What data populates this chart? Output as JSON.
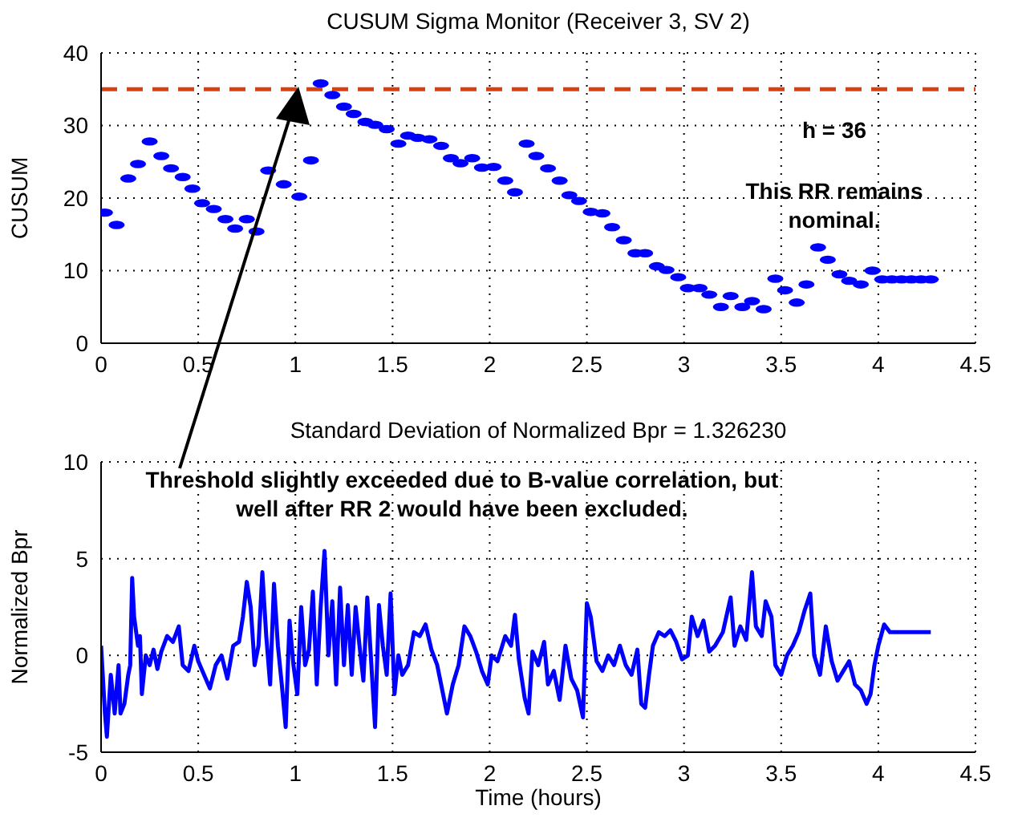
{
  "chart_data": [
    {
      "type": "scatter",
      "title": "CUSUM Sigma Monitor  (Receiver 3, SV 2)",
      "ylabel": "CUSUM",
      "marker": "circle",
      "grid": true,
      "x": [
        0.02,
        0.08,
        0.14,
        0.19,
        0.25,
        0.31,
        0.36,
        0.42,
        0.47,
        0.52,
        0.58,
        0.64,
        0.69,
        0.75,
        0.8,
        0.86,
        0.94,
        1.02,
        1.08,
        1.13,
        1.19,
        1.25,
        1.3,
        1.36,
        1.41,
        1.47,
        1.53,
        1.58,
        1.63,
        1.69,
        1.75,
        1.8,
        1.85,
        1.91,
        1.96,
        2.02,
        2.08,
        2.13,
        2.19,
        2.24,
        2.3,
        2.36,
        2.41,
        2.46,
        2.52,
        2.58,
        2.63,
        2.69,
        2.75,
        2.8,
        2.86,
        2.91,
        2.97,
        3.02,
        3.08,
        3.13,
        3.19,
        3.24,
        3.3,
        3.35,
        3.41,
        3.47,
        3.52,
        3.58,
        3.63,
        3.69,
        3.74,
        3.8,
        3.85,
        3.91,
        3.97,
        4.02,
        4.07,
        4.12,
        4.17,
        4.22,
        4.27
      ],
      "series": [
        {
          "color": "#0000ff",
          "values": [
            18.0,
            16.3,
            22.7,
            24.7,
            27.8,
            25.8,
            24.1,
            22.9,
            21.3,
            19.3,
            18.5,
            17.1,
            15.8,
            17.1,
            15.4,
            23.8,
            21.9,
            20.2,
            25.2,
            35.8,
            34.2,
            32.6,
            31.6,
            30.5,
            30.1,
            29.5,
            27.5,
            28.6,
            28.3,
            28.1,
            27.2,
            25.5,
            24.8,
            25.5,
            24.2,
            24.3,
            22.4,
            20.8,
            27.5,
            25.8,
            24.1,
            22.4,
            20.4,
            19.6,
            18.1,
            17.9,
            16.0,
            14.2,
            12.4,
            12.4,
            10.6,
            10.1,
            9.1,
            7.6,
            7.6,
            6.7,
            5.0,
            6.5,
            5.0,
            5.8,
            4.7,
            8.9,
            7.3,
            5.6,
            8.1,
            13.2,
            11.5,
            9.5,
            8.6,
            8.1,
            10.0,
            8.8,
            8.8,
            8.8,
            8.8,
            8.8,
            8.8
          ]
        }
      ],
      "xlim": [
        0,
        4.5
      ],
      "xticks": [
        0,
        0.5,
        1,
        1.5,
        2,
        2.5,
        3,
        3.5,
        4,
        4.5
      ],
      "ylim": [
        0,
        40
      ],
      "yticks": [
        0,
        10,
        20,
        30,
        40
      ],
      "ref_lines": [
        {
          "axis": "y",
          "value": 35,
          "color": "#d84010",
          "line_style": "dashed"
        }
      ],
      "annotations": [
        "h = 36",
        "This RR remains nominal."
      ]
    },
    {
      "type": "line",
      "title": "Standard Deviation of Normalized Bpr = 1.326230",
      "xlabel": "Time (hours)",
      "ylabel": "Normalized Bpr",
      "marker": "none",
      "line_style": "solid",
      "grid": true,
      "x": [
        0.0,
        0.02,
        0.03,
        0.05,
        0.07,
        0.09,
        0.1,
        0.12,
        0.14,
        0.15,
        0.16,
        0.17,
        0.19,
        0.2,
        0.21,
        0.23,
        0.25,
        0.27,
        0.29,
        0.31,
        0.34,
        0.37,
        0.4,
        0.42,
        0.45,
        0.48,
        0.5,
        0.53,
        0.56,
        0.59,
        0.62,
        0.65,
        0.68,
        0.71,
        0.73,
        0.75,
        0.77,
        0.79,
        0.81,
        0.83,
        0.85,
        0.87,
        0.89,
        0.91,
        0.93,
        0.95,
        0.97,
        0.99,
        1.01,
        1.03,
        1.05,
        1.07,
        1.09,
        1.11,
        1.13,
        1.15,
        1.17,
        1.19,
        1.21,
        1.23,
        1.25,
        1.27,
        1.29,
        1.31,
        1.33,
        1.35,
        1.37,
        1.39,
        1.41,
        1.43,
        1.45,
        1.47,
        1.49,
        1.51,
        1.53,
        1.55,
        1.58,
        1.61,
        1.64,
        1.67,
        1.7,
        1.73,
        1.76,
        1.78,
        1.81,
        1.84,
        1.87,
        1.9,
        1.93,
        1.96,
        1.99,
        2.01,
        2.04,
        2.08,
        2.11,
        2.13,
        2.15,
        2.18,
        2.2,
        2.22,
        2.25,
        2.28,
        2.3,
        2.33,
        2.36,
        2.39,
        2.42,
        2.45,
        2.48,
        2.5,
        2.52,
        2.55,
        2.58,
        2.61,
        2.64,
        2.67,
        2.7,
        2.73,
        2.76,
        2.78,
        2.8,
        2.82,
        2.84,
        2.87,
        2.9,
        2.93,
        2.96,
        2.99,
        3.02,
        3.04,
        3.07,
        3.1,
        3.13,
        3.16,
        3.2,
        3.24,
        3.26,
        3.29,
        3.32,
        3.35,
        3.37,
        3.4,
        3.42,
        3.45,
        3.47,
        3.5,
        3.53,
        3.56,
        3.59,
        3.62,
        3.65,
        3.67,
        3.7,
        3.73,
        3.76,
        3.79,
        3.82,
        3.85,
        3.88,
        3.91,
        3.94,
        3.96,
        3.98,
        4.0,
        4.03,
        4.06,
        4.1,
        4.15,
        4.2,
        4.27
      ],
      "series": [
        {
          "color": "#0000ff",
          "values": [
            0.5,
            -3,
            -4.2,
            -1,
            -3,
            -0.5,
            -3,
            -2.5,
            -1,
            -0.5,
            4,
            2,
            0.5,
            1,
            -2,
            0,
            -0.5,
            0.3,
            -0.7,
            0.2,
            1,
            0.7,
            1.5,
            -0.5,
            -0.8,
            0.5,
            -0.3,
            -1,
            -1.7,
            -0.5,
            0,
            -1.2,
            0.5,
            0.7,
            2,
            3.8,
            2.5,
            -0.5,
            0.5,
            4.3,
            1,
            -1.5,
            3.7,
            0.5,
            -1.5,
            -3.7,
            1.8,
            -0.5,
            -2,
            2.5,
            -0.5,
            0.3,
            3.3,
            -1.5,
            2.5,
            5.4,
            0,
            2.8,
            -1.5,
            3.5,
            -0.5,
            2.6,
            -1,
            2.5,
            0.5,
            -1.3,
            3,
            -0.3,
            -3.7,
            2.6,
            0.5,
            -1,
            3.2,
            -2,
            0,
            -1,
            -0.5,
            1.2,
            1,
            1.6,
            0.3,
            -0.5,
            -2,
            -3,
            -1.5,
            -0.5,
            1.5,
            1,
            0.2,
            -0.8,
            -1.5,
            0,
            -0.3,
            1,
            0.5,
            2.1,
            -0.2,
            -2.2,
            -3,
            0.2,
            -0.5,
            0.7,
            -1.5,
            -0.8,
            -2.3,
            0.5,
            -1.2,
            -1.8,
            -3.2,
            2.7,
            2,
            -0.3,
            -0.8,
            0,
            -0.5,
            0.5,
            -0.5,
            -1,
            0.3,
            -2.5,
            -2.7,
            -1,
            0.5,
            1.2,
            1,
            1.3,
            0.7,
            -0.2,
            0,
            2,
            1,
            1.8,
            0.2,
            0.5,
            1.2,
            3,
            0.5,
            1.5,
            0.8,
            4.3,
            1.5,
            1,
            2.8,
            2,
            -0.5,
            -1,
            0,
            0.5,
            1.2,
            2.3,
            3.2,
            0,
            -1,
            1.5,
            -0.3,
            -1.3,
            -0.8,
            -0.3,
            -1.5,
            -1.8,
            -2.5,
            -2,
            -0.5,
            0.5,
            1.6,
            1.2,
            1.2,
            1.2,
            1.2,
            1.2
          ]
        }
      ],
      "xlim": [
        0,
        4.5
      ],
      "xticks": [
        0,
        0.5,
        1,
        1.5,
        2,
        2.5,
        3,
        3.5,
        4,
        4.5
      ],
      "ylim": [
        -5,
        10
      ],
      "yticks": [
        -5,
        0,
        5,
        10
      ],
      "annotations": [
        "Threshold slightly exceeded due to B-value correlation, but well after RR 2 would have been excluded."
      ]
    }
  ]
}
